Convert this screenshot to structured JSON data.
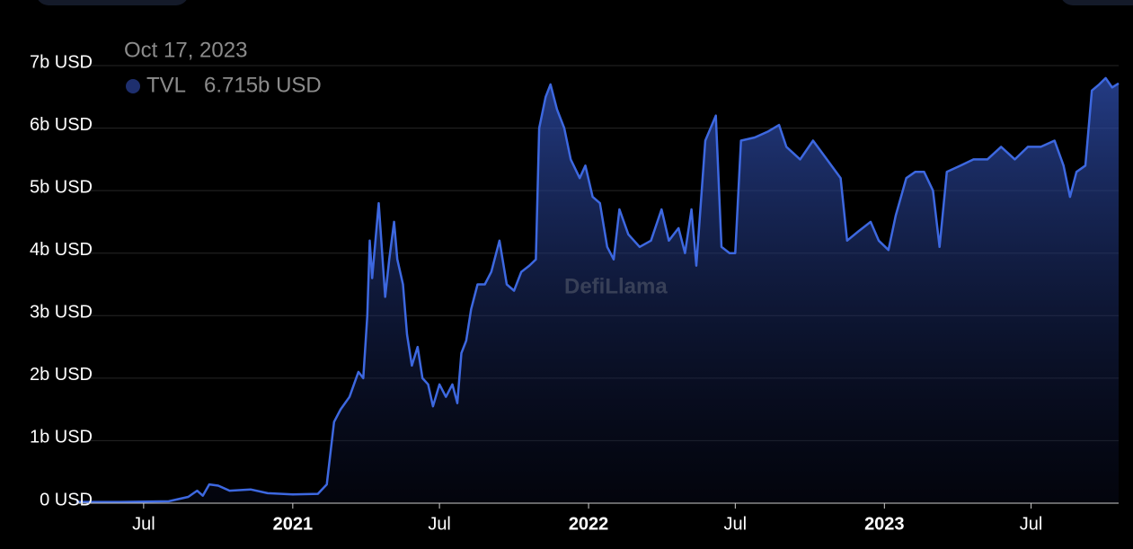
{
  "chart_data": {
    "type": "area",
    "watermark": "DefiLlama",
    "tooltip": {
      "date": "Oct 17, 2023",
      "value_label": "6.715b USD"
    },
    "xlim": [
      "2020-04-09",
      "2023-10-17"
    ],
    "xticks": [
      {
        "value": "2020-07-01",
        "label": "Jul"
      },
      {
        "value": "2021-01-01",
        "label": "2021"
      },
      {
        "value": "2021-07-01",
        "label": "Jul"
      },
      {
        "value": "2022-01-01",
        "label": "2022"
      },
      {
        "value": "2022-07-01",
        "label": "Jul"
      },
      {
        "value": "2023-01-01",
        "label": "2023"
      },
      {
        "value": "2023-07-01",
        "label": "Jul"
      }
    ],
    "ylim": [
      0,
      7
    ],
    "yticks": [
      {
        "value": 0,
        "label": "0 USD"
      },
      {
        "value": 1,
        "label": "1b USD"
      },
      {
        "value": 2,
        "label": "2b USD"
      },
      {
        "value": 3,
        "label": "3b USD"
      },
      {
        "value": 4,
        "label": "4b USD"
      },
      {
        "value": 5,
        "label": "5b USD"
      },
      {
        "value": 6,
        "label": "6b USD"
      },
      {
        "value": 7,
        "label": "7b USD"
      }
    ],
    "grid": true,
    "x": [
      "2020-04-09",
      "2020-06-01",
      "2020-08-01",
      "2020-08-25",
      "2020-09-05",
      "2020-09-12",
      "2020-09-20",
      "2020-10-01",
      "2020-10-15",
      "2020-11-10",
      "2020-12-01",
      "2021-01-01",
      "2021-02-01",
      "2021-02-12",
      "2021-02-21",
      "2021-03-01",
      "2021-03-12",
      "2021-03-23",
      "2021-03-29",
      "2021-04-03",
      "2021-04-06",
      "2021-04-09",
      "2021-04-17",
      "2021-04-25",
      "2021-04-30",
      "2021-05-06",
      "2021-05-10",
      "2021-05-17",
      "2021-05-22",
      "2021-05-28",
      "2021-06-04",
      "2021-06-10",
      "2021-06-17",
      "2021-06-23",
      "2021-07-01",
      "2021-07-09",
      "2021-07-17",
      "2021-07-23",
      "2021-07-28",
      "2021-08-03",
      "2021-08-09",
      "2021-08-17",
      "2021-08-26",
      "2021-09-03",
      "2021-09-13",
      "2021-09-22",
      "2021-10-01",
      "2021-10-10",
      "2021-10-20",
      "2021-10-28",
      "2021-11-01",
      "2021-11-09",
      "2021-11-15",
      "2021-11-23",
      "2021-12-02",
      "2021-12-10",
      "2021-12-21",
      "2021-12-28",
      "2022-01-06",
      "2022-01-15",
      "2022-01-24",
      "2022-02-01",
      "2022-02-08",
      "2022-02-19",
      "2022-03-05",
      "2022-03-19",
      "2022-04-01",
      "2022-04-10",
      "2022-04-22",
      "2022-04-30",
      "2022-05-08",
      "2022-05-14",
      "2022-05-25",
      "2022-06-07",
      "2022-06-14",
      "2022-06-24",
      "2022-07-01",
      "2022-07-08",
      "2022-07-25",
      "2022-08-11",
      "2022-08-24",
      "2022-09-02",
      "2022-09-19",
      "2022-10-05",
      "2022-10-22",
      "2022-11-08",
      "2022-11-16",
      "2022-11-30",
      "2022-12-15",
      "2022-12-25",
      "2023-01-06",
      "2023-01-15",
      "2023-01-28",
      "2023-02-08",
      "2023-02-19",
      "2023-03-02",
      "2023-03-10",
      "2023-03-19",
      "2023-04-05",
      "2023-04-21",
      "2023-05-08",
      "2023-05-25",
      "2023-06-11",
      "2023-06-27",
      "2023-07-13",
      "2023-07-30",
      "2023-08-10",
      "2023-08-18",
      "2023-08-26",
      "2023-09-06",
      "2023-09-14",
      "2023-09-23",
      "2023-10-01",
      "2023-10-09",
      "2023-10-17"
    ],
    "series": [
      {
        "name": "TVL",
        "color": "#3d68e0",
        "values": [
          0.02,
          0.02,
          0.03,
          0.1,
          0.2,
          0.12,
          0.3,
          0.28,
          0.2,
          0.22,
          0.16,
          0.14,
          0.15,
          0.3,
          1.3,
          1.5,
          1.7,
          2.1,
          2.0,
          3.0,
          4.2,
          3.6,
          4.8,
          3.3,
          3.9,
          4.5,
          3.9,
          3.5,
          2.7,
          2.2,
          2.5,
          2.0,
          1.9,
          1.55,
          1.9,
          1.7,
          1.9,
          1.6,
          2.4,
          2.6,
          3.1,
          3.5,
          3.5,
          3.7,
          4.2,
          3.5,
          3.4,
          3.7,
          3.8,
          3.9,
          6.0,
          6.5,
          6.7,
          6.3,
          6.0,
          5.5,
          5.2,
          5.4,
          4.9,
          4.8,
          4.1,
          3.9,
          4.7,
          4.3,
          4.1,
          4.2,
          4.7,
          4.2,
          4.4,
          4.0,
          4.7,
          3.8,
          5.8,
          6.2,
          4.1,
          4.0,
          4.0,
          5.8,
          5.85,
          5.95,
          6.05,
          5.7,
          5.5,
          5.8,
          5.5,
          5.2,
          4.2,
          4.35,
          4.5,
          4.2,
          4.05,
          4.6,
          5.2,
          5.3,
          5.3,
          5.0,
          4.1,
          5.3,
          5.4,
          5.5,
          5.5,
          5.7,
          5.5,
          5.7,
          5.7,
          5.8,
          5.4,
          4.9,
          5.3,
          5.4,
          6.6,
          6.7,
          6.8,
          6.65,
          6.715
        ]
      }
    ]
  }
}
